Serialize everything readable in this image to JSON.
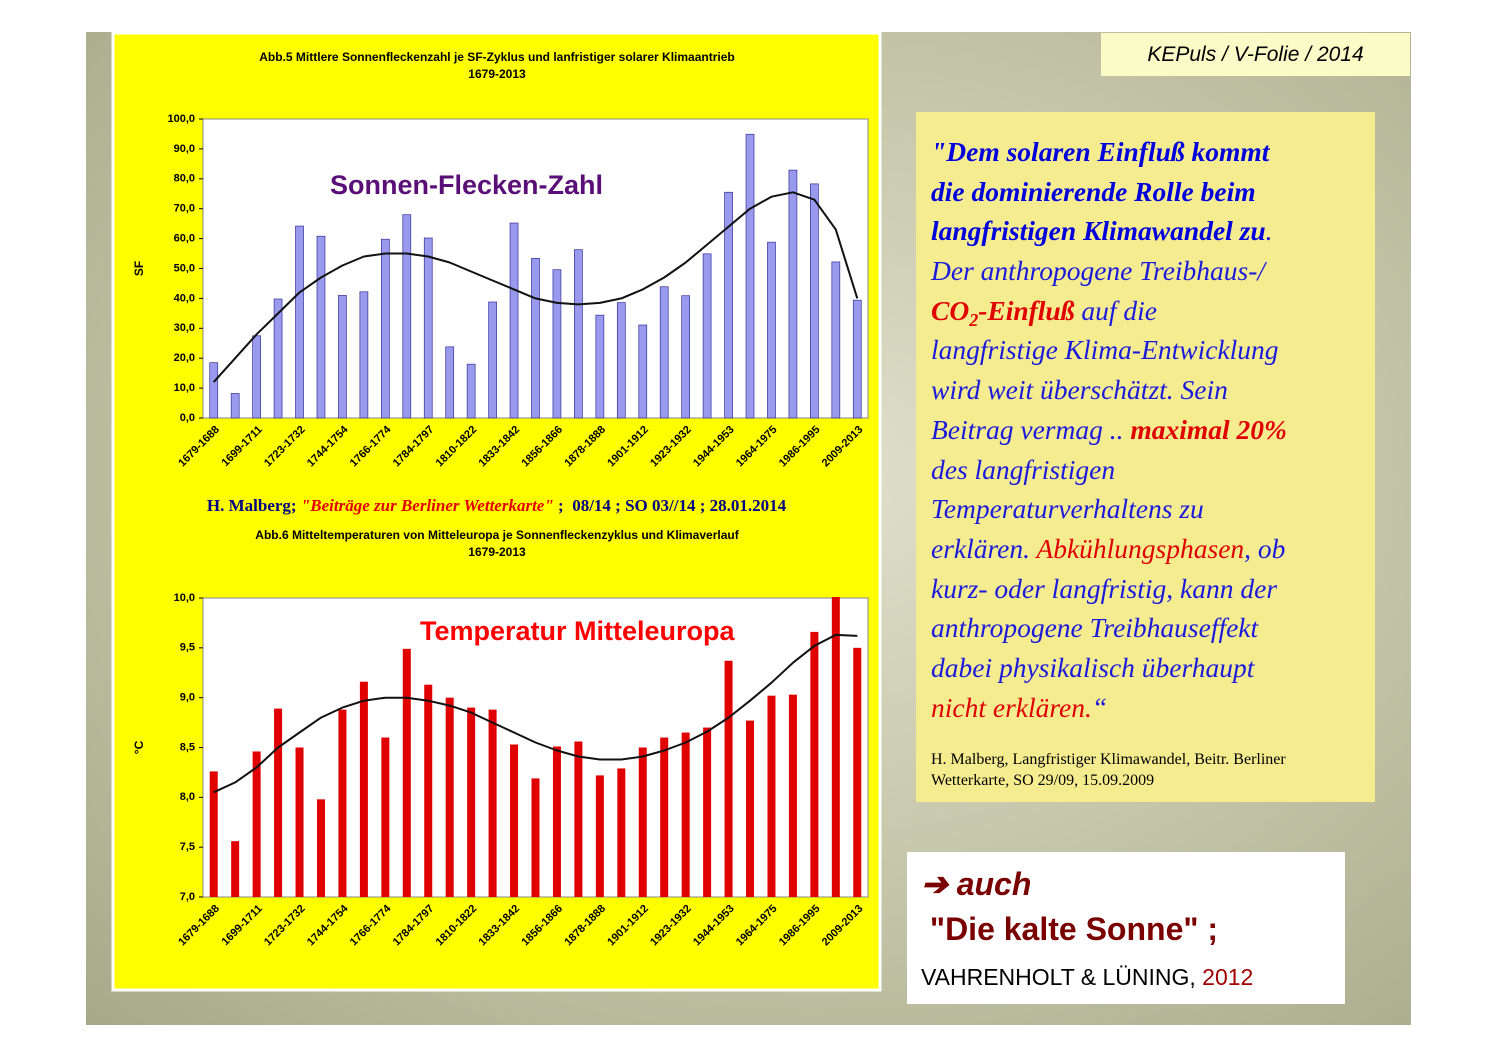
{
  "header": "KEPuls / V-Folie / 2014",
  "chart_data": [
    {
      "type": "bar",
      "title": "Abb.5 Mittlere Sonnenfleckenzahl je SF-Zyklus und lanfristiger solarer Klimaantrieb",
      "subtitle": "1679-2013",
      "ylabel": "SF",
      "annotation": {
        "text": "Sonnen-Flecken-Zahl",
        "color": "#5a0f78"
      },
      "categories": [
        "1679-1688",
        null,
        "1699-1711",
        null,
        "1723-1732",
        null,
        "1744-1754",
        null,
        "1766-1774",
        null,
        "1784-1797",
        null,
        "1810-1822",
        null,
        "1833-1842",
        null,
        "1856-1866",
        null,
        "1878-1888",
        null,
        "1901-1912",
        null,
        "1923-1932",
        null,
        "1944-1953",
        null,
        "1964-1975",
        null,
        "1986-1995",
        null,
        "2009-2013"
      ],
      "values": [
        18.5,
        8.2,
        27.5,
        39.8,
        64.2,
        60.8,
        41.0,
        42.2,
        59.8,
        68.0,
        60.2,
        23.8,
        18.0,
        38.8,
        65.2,
        53.4,
        49.6,
        56.3,
        34.4,
        38.6,
        31.1,
        43.9,
        40.9,
        54.9,
        75.5,
        94.9,
        58.8,
        82.9,
        78.3,
        52.2,
        39.4
      ],
      "trend": [
        12,
        20,
        28,
        35,
        42,
        47,
        51,
        54,
        55,
        55,
        54,
        52,
        49,
        46,
        43,
        40,
        38.5,
        38,
        38.5,
        40,
        43,
        47,
        52,
        58,
        64,
        70,
        74,
        75.5,
        73,
        63,
        40
      ],
      "color": "#9999ee",
      "ylim": [
        0,
        100
      ],
      "yticks": [
        {
          "value": 0,
          "label": "0,0"
        },
        {
          "value": 10,
          "label": "10,0"
        },
        {
          "value": 20,
          "label": "20,0"
        },
        {
          "value": 30,
          "label": "30,0"
        },
        {
          "value": 40,
          "label": "40,0"
        },
        {
          "value": 50,
          "label": "50,0"
        },
        {
          "value": 60,
          "label": "60,0"
        },
        {
          "value": 70,
          "label": "70,0"
        },
        {
          "value": 80,
          "label": "80,0"
        },
        {
          "value": 90,
          "label": "90,0"
        },
        {
          "value": 100,
          "label": "100,0"
        }
      ],
      "grid": false
    },
    {
      "type": "bar",
      "title": "Abb.6 Mitteltemperaturen von Mitteleuropa je Sonnenfleckenzyklus und Klimaverlauf",
      "subtitle": "1679-2013",
      "ylabel": "°C",
      "annotation": {
        "text": "Temperatur Mitteleuropa",
        "color": "#ff0000"
      },
      "categories": [
        "1679-1688",
        null,
        "1699-1711",
        null,
        "1723-1732",
        null,
        "1744-1754",
        null,
        "1766-1774",
        null,
        "1784-1797",
        null,
        "1810-1822",
        null,
        "1833-1842",
        null,
        "1856-1866",
        null,
        "1878-1888",
        null,
        "1901-1912",
        null,
        "1923-1932",
        null,
        "1944-1953",
        null,
        "1964-1975",
        null,
        "1986-1995",
        null,
        "2009-2013"
      ],
      "values": [
        8.26,
        7.56,
        8.46,
        8.89,
        8.5,
        7.98,
        8.88,
        9.16,
        8.6,
        9.49,
        9.13,
        9.0,
        8.9,
        8.88,
        8.53,
        8.19,
        8.51,
        8.56,
        8.22,
        8.29,
        8.5,
        8.6,
        8.65,
        8.7,
        9.37,
        8.77,
        9.02,
        9.03,
        9.66,
        10.01,
        9.5
      ],
      "trend": [
        8.05,
        8.15,
        8.3,
        8.5,
        8.65,
        8.8,
        8.9,
        8.97,
        9.0,
        9.0,
        8.97,
        8.92,
        8.85,
        8.75,
        8.65,
        8.55,
        8.47,
        8.41,
        8.38,
        8.38,
        8.41,
        8.47,
        8.55,
        8.66,
        8.8,
        8.97,
        9.15,
        9.35,
        9.52,
        9.63,
        9.62
      ],
      "color": "#e00000",
      "ylim": [
        7,
        10
      ],
      "yticks": [
        {
          "value": 7,
          "label": "7,0"
        },
        {
          "value": 7.5,
          "label": "7,5"
        },
        {
          "value": 8,
          "label": "8,0"
        },
        {
          "value": 8.5,
          "label": "8,5"
        },
        {
          "value": 9,
          "label": "9,0"
        },
        {
          "value": 9.5,
          "label": "9,5"
        },
        {
          "value": 10,
          "label": "10,0"
        }
      ],
      "grid": false
    }
  ],
  "source": [
    {
      "text": "H. Malberg; ",
      "style": "navy"
    },
    {
      "text": "\"Beiträge zur Berliner Wetterkarte\"",
      "style": "red-italic"
    },
    {
      "text": " ;  08/14 ; SO 03//14 ; 28.01.2014",
      "style": "navy"
    }
  ],
  "quote": {
    "lines": [
      [
        {
          "text": "\"Dem solaren Einfluß kommt",
          "style": "bold-blue"
        }
      ],
      [
        {
          "text": "die dominierende Rolle beim",
          "style": "bold-blue"
        }
      ],
      [
        {
          "text": "langfristigen Klimawandel zu",
          "style": "bold-blue"
        },
        {
          "text": ".",
          "style": "blue"
        }
      ],
      [
        {
          "text": "Der anthropogene Treibhaus-/",
          "style": "blue"
        }
      ],
      [
        {
          "text": "CO",
          "style": "bold-red"
        },
        {
          "text": "2",
          "style": "sub-bold-red"
        },
        {
          "text": "-Einfluß",
          "style": "bold-red"
        },
        {
          "text": " auf die",
          "style": "blue"
        }
      ],
      [
        {
          "text": "langfristige Klima-Entwicklung",
          "style": "blue"
        }
      ],
      [
        {
          "text": "wird weit überschätzt. Sein",
          "style": "blue"
        }
      ],
      [
        {
          "text": "Beitrag vermag .. ",
          "style": "blue"
        },
        {
          "text": "maximal 20%",
          "style": "bold-red"
        }
      ],
      [
        {
          "text": "des langfristigen",
          "style": "blue"
        }
      ],
      [
        {
          "text": "Temperaturverhaltens zu",
          "style": "blue"
        }
      ],
      [
        {
          "text": "erklären. ",
          "style": "blue"
        },
        {
          "text": "Abkühlungsphasen",
          "style": "red"
        },
        {
          "text": ", ob",
          "style": "blue"
        }
      ],
      [
        {
          "text": "kurz- oder langfristig, kann der",
          "style": "blue"
        }
      ],
      [
        {
          "text": "anthropogene Treibhauseffekt",
          "style": "blue"
        }
      ],
      [
        {
          "text": "dabei physikalisch überhaupt",
          "style": "blue"
        }
      ],
      [
        {
          "text": "nicht erklären.",
          "style": "red"
        },
        {
          "text": "“",
          "style": "blue"
        }
      ]
    ],
    "citation": [
      "H. Malberg, Langfristiger Klimawandel, Beitr. Berliner",
      "Wetterkarte, SO 29/09, 15.09.2009"
    ]
  },
  "reference": {
    "lines": [
      [
        {
          "text": "➔ auch",
          "style": "big-italic"
        }
      ],
      [
        {
          "text": " \"Die kalte Sonne\" ;",
          "style": "big"
        }
      ],
      [
        {
          "text": "VAHRENHOLT & LÜNING, ",
          "style": "small-black"
        },
        {
          "text": "2012",
          "style": "small-red"
        }
      ]
    ]
  }
}
